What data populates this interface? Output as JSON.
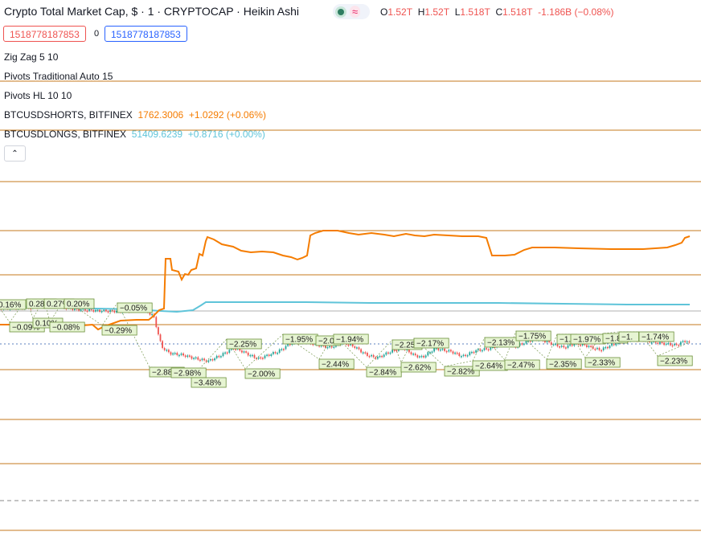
{
  "header": {
    "title": "Crypto Total Market Cap, $ · 1 · CRYPTOCAP · Heikin Ashi",
    "ohlc": [
      {
        "k": "O",
        "v": "1.52T"
      },
      {
        "k": "H",
        "v": "1.52T"
      },
      {
        "k": "L",
        "v": "1.518T"
      },
      {
        "k": "C",
        "v": "1.518T"
      }
    ],
    "change": "-1.186B (−0.08%)",
    "sell_value": "1518778187853",
    "spread": "0",
    "buy_value": "1518778187853",
    "icons": [
      "market-status-dot-icon",
      "wave-icon",
      "chevron-up-icon"
    ]
  },
  "indicators": [
    {
      "name": "Zig Zag 5 10"
    },
    {
      "name": "Pivots Traditional Auto 15"
    },
    {
      "name": "Pivots HL 10 10"
    }
  ],
  "overlays": [
    {
      "name": "BTCUSDSHORTS, BITFINEX",
      "value": "1762.3006",
      "change": "+1.0292 (+0.06%)",
      "color": "#f57c00"
    },
    {
      "name": "BTCUSDLONGS, BITFINEX",
      "value": "51409.6239",
      "change": "+0.8716 (+0.00%)",
      "color": "#5fc4d9"
    }
  ],
  "chart_data": {
    "type": "line",
    "candle_colors": {
      "up": "#26a69a",
      "down": "#ef5350"
    },
    "pivot_line_color": "#c47a1d",
    "zigzag_labels": [
      "0.16%",
      "0.28%",
      "0.27%",
      "0.20%",
      "−0.09%",
      "0.10%",
      "−0.08%",
      "−0.29%",
      "−0.05%",
      "−2.88%",
      "−2.98%",
      "−3.48%",
      "−2.25%",
      "−2.00%",
      "−1.95%",
      "−2.0",
      "−1.94%",
      "−2.44%",
      "−2.25",
      "−2.17%",
      "−2.84%",
      "−2.62%",
      "−2.82%",
      "−2.13%",
      "−2.64%",
      "−2.47%",
      "−1.75%",
      "−1.",
      "−1.97%",
      "−2.35%",
      "−1.8",
      "−2.33%",
      "−1.",
      "−1.74%",
      "−2.23%"
    ],
    "series": [
      {
        "name": "BTCUSDSHORTS, BITFINEX"
      },
      {
        "name": "BTCUSDLONGS, BITFINEX"
      }
    ]
  }
}
